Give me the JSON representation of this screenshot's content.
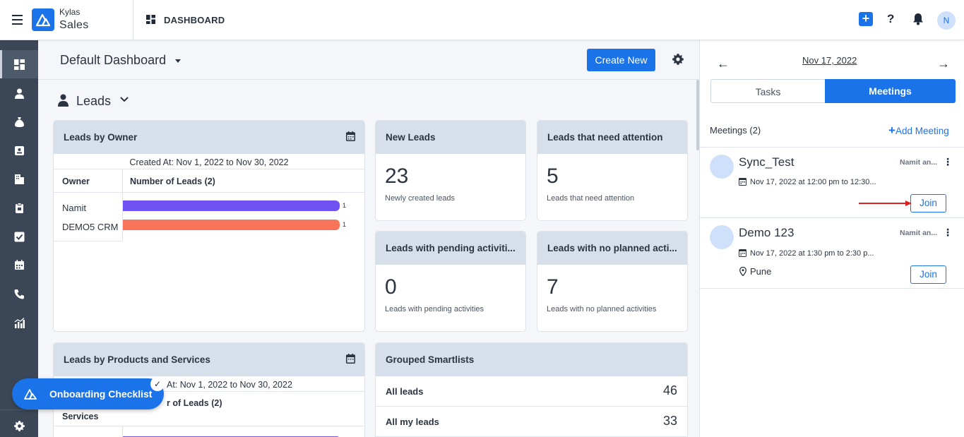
{
  "topbar": {
    "brand_top": "Kylas",
    "brand_bottom": "Sales",
    "page_title": "DASHBOARD",
    "avatar_initial": "N",
    "icons": [
      "menu-icon",
      "plus-icon",
      "help-icon",
      "bell-icon"
    ]
  },
  "sidebar": {
    "items": [
      {
        "name": "dashboard",
        "icon": "dashboard-icon",
        "active": true
      },
      {
        "name": "contacts",
        "icon": "person-icon",
        "active": false
      },
      {
        "name": "deals",
        "icon": "money-bag-icon",
        "active": false
      },
      {
        "name": "leads",
        "icon": "contact-card-icon",
        "active": false
      },
      {
        "name": "companies",
        "icon": "building-icon",
        "active": false
      },
      {
        "name": "products",
        "icon": "clipboard-icon",
        "active": false
      },
      {
        "name": "tasks",
        "icon": "checkbox-icon",
        "active": false
      },
      {
        "name": "meetings",
        "icon": "calendar-icon",
        "active": false
      },
      {
        "name": "calls",
        "icon": "phone-icon",
        "active": false
      },
      {
        "name": "reports",
        "icon": "bar-chart-icon",
        "active": false
      }
    ],
    "settings_icon": "gear-icon"
  },
  "main": {
    "dashboard_name": "Default Dashboard",
    "create_new_label": "Create New",
    "section_label": "Leads",
    "leads_by_owner": {
      "title": "Leads by Owner",
      "created_at": "Created At: Nov 1, 2022 to Nov 30, 2022",
      "col_owner": "Owner",
      "col_count": "Number of Leads (2)",
      "rows": [
        {
          "label": "Namit",
          "value": 1,
          "color": "#7052f3"
        },
        {
          "label": "DEMO5 CRM",
          "value": 1,
          "color": "#f8745a"
        }
      ]
    },
    "kpis": [
      {
        "title": "New Leads",
        "value": "23",
        "sub": "Newly created leads"
      },
      {
        "title": "Leads that need attention",
        "value": "5",
        "sub": "Leads that need attention"
      },
      {
        "title": "Leads with pending activiti...",
        "value": "0",
        "sub": "Leads with pending activities"
      },
      {
        "title": "Leads with no planned acti...",
        "value": "7",
        "sub": "Leads with no planned activities"
      }
    ],
    "leads_by_products": {
      "title": "Leads by Products and Services",
      "created_at": "At: Nov 1, 2022 to Nov 30, 2022",
      "col_count": "r of Leads (2)",
      "col_services": "Services"
    },
    "grouped_smartlists": {
      "title": "Grouped Smartlists",
      "rows": [
        {
          "name": "All leads",
          "count": "46"
        },
        {
          "name": "All my leads",
          "count": "33"
        }
      ]
    }
  },
  "onboarding": {
    "label": "Onboarding Checklist"
  },
  "right_panel": {
    "date": "Nov 17, 2022",
    "tabs": [
      "Tasks",
      "Meetings"
    ],
    "active_tab": "Meetings",
    "meetings_count_label": "Meetings (2)",
    "add_meeting_label": "Add Meeting",
    "meetings": [
      {
        "title": "Sync_Test",
        "owner": "Namit an...",
        "time": "Nov 17, 2022 at 12:00 pm to 12:30...",
        "location": "",
        "join_label": "Join"
      },
      {
        "title": "Demo 123",
        "owner": "Namit an...",
        "time": "Nov 17, 2022 at 1:30 pm to 2:30 p...",
        "location": "Pune",
        "join_label": "Join"
      }
    ]
  },
  "colors": {
    "primary": "#1a73e8",
    "sidebar": "#3b4757",
    "card_header": "#d7e0ea",
    "annotation_arrow": "#e02020"
  }
}
